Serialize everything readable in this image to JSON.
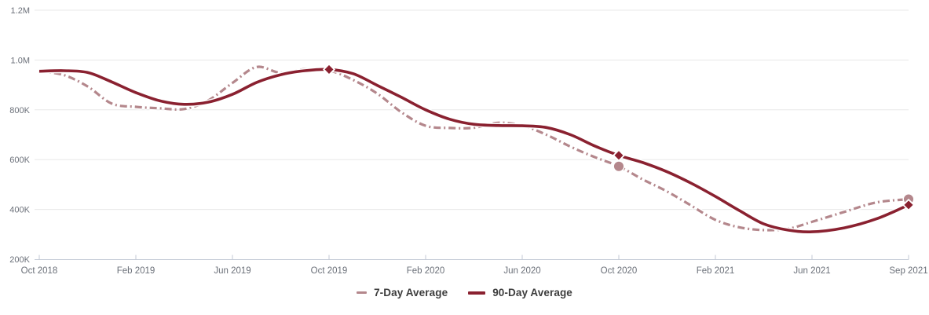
{
  "chart_data": {
    "type": "line",
    "title": "",
    "xlabel": "",
    "ylabel": "",
    "x_interval": "monthly",
    "x_start_month": "Oct 2018",
    "x_end_month": "Sep 2021",
    "ylim": [
      200000,
      1200000
    ],
    "grid": "horizontal-only",
    "legend_position": "bottom-center",
    "y_ticks": [
      {
        "value": 200000,
        "label": "200K"
      },
      {
        "value": 400000,
        "label": "400K"
      },
      {
        "value": 600000,
        "label": "600K"
      },
      {
        "value": 800000,
        "label": "800K"
      },
      {
        "value": 1000000,
        "label": "1.0M"
      },
      {
        "value": 1200000,
        "label": "1.2M"
      }
    ],
    "x_ticks": [
      {
        "month_index": 0,
        "label": "Oct 2018"
      },
      {
        "month_index": 4,
        "label": "Feb 2019"
      },
      {
        "month_index": 8,
        "label": "Jun 2019"
      },
      {
        "month_index": 12,
        "label": "Oct 2019"
      },
      {
        "month_index": 16,
        "label": "Feb 2020"
      },
      {
        "month_index": 20,
        "label": "Jun 2020"
      },
      {
        "month_index": 24,
        "label": "Oct 2020"
      },
      {
        "month_index": 28,
        "label": "Feb 2021"
      },
      {
        "month_index": 32,
        "label": "Jun 2021"
      },
      {
        "month_index": 35,
        "label": "Sep 2021"
      }
    ],
    "series": [
      {
        "name": "7-Day Average",
        "color": "#b4878c",
        "line_style": "dash-dot",
        "marker_shape": "circle",
        "values_thousands": [
          955,
          940,
          894,
          825,
          812,
          806,
          803,
          838,
          908,
          972,
          948,
          963,
          958,
          920,
          865,
          790,
          736,
          727,
          728,
          748,
          737,
          700,
          652,
          610,
          573,
          520,
          472,
          415,
          358,
          328,
          317,
          322,
          350,
          390,
          428,
          441
        ],
        "markers": [
          {
            "month_index": 24,
            "x_label": "Oct 2020",
            "value": 573000
          },
          {
            "month_index": 35,
            "x_label": "Sep 2021",
            "value": 441000
          }
        ]
      },
      {
        "name": "90-Day Average",
        "color": "#8a2130",
        "line_style": "solid",
        "marker_shape": "diamond",
        "values_thousands": [
          955,
          957,
          950,
          912,
          869,
          836,
          822,
          831,
          862,
          910,
          941,
          957,
          962,
          945,
          898,
          850,
          800,
          762,
          742,
          737,
          736,
          729,
          700,
          655,
          617,
          588,
          551,
          505,
          452,
          395,
          342,
          317,
          310,
          326,
          362,
          418
        ],
        "markers": [
          {
            "month_index": 12,
            "x_label": "Oct 2019",
            "value": 962000
          },
          {
            "month_index": 24,
            "x_label": "Oct 2020",
            "value": 617000
          },
          {
            "month_index": 35,
            "x_label": "Sep 2021",
            "value": 418000
          }
        ]
      }
    ],
    "palette": {
      "background": "#ffffff",
      "gridline": "#e8e8e8",
      "axis_line": "#c3cad6",
      "tick_label": "#6b7079",
      "legend_text": "#3d3d3d",
      "marker_outline": "#ffffff"
    }
  },
  "legend": {
    "items": [
      {
        "label": "7-Day Average"
      },
      {
        "label": "90-Day Average"
      }
    ]
  }
}
